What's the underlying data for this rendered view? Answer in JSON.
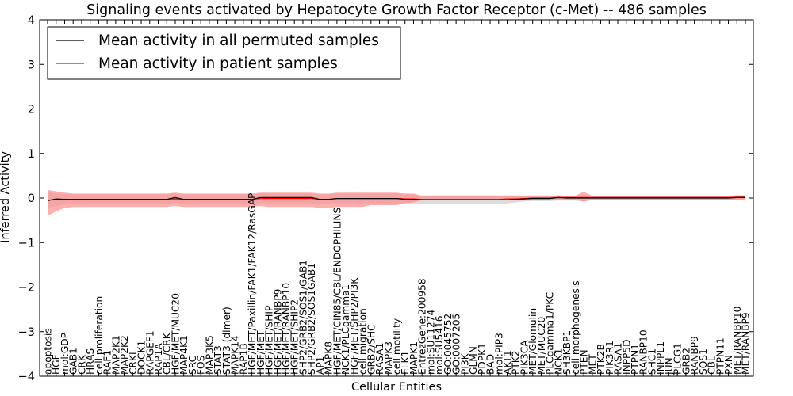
{
  "chart_data": {
    "type": "line",
    "title": "Signaling events activated by Hepatocyte Growth Factor Receptor (c-Met) -- 486 samples",
    "xlabel": "Cellular Entities",
    "ylabel": "Inferred Activity",
    "ylim": [
      -4,
      4
    ],
    "yticks": [
      -4,
      -3,
      -2,
      -1,
      0,
      1,
      2,
      3,
      4
    ],
    "ytick_labels": [
      "−4",
      "−3",
      "−2",
      "−1",
      "0",
      "1",
      "2",
      "3",
      "4"
    ],
    "grid": false,
    "legend": {
      "position": "top-left"
    },
    "categories": [
      "apoptosis",
      "HGF",
      "mol:GDP",
      "GAB1",
      "CRK",
      "HRAS",
      "cell proliferation",
      "RAF1",
      "MAP2K1",
      "MAP2K2",
      "CRKL",
      "DOCK1",
      "RAPGEF1",
      "RAP1A",
      "CBL/CRK",
      "HGF/MET/MUC20",
      "MAP4K1",
      "SRC",
      "FOS",
      "MAP3K5",
      "STAT3",
      "STAT3 (dimer)",
      "MAPK14",
      "RAP1B",
      "HGF/MET/Paxillin/FAK1/FAK12/RasGAP",
      "HGF/MET",
      "HGF/MET/SHIP",
      "HGF/MET/RANBP9",
      "HGF/MET/RANBP10",
      "HGF/MET/SHIP2",
      "SHP2/GRB2/SOS1/GAB1",
      "SHP2/GRB2/SOS1GAB1",
      "AP1",
      "MAPK8",
      "HGF/MET/CIN85/CBL/ENDOPHILINS",
      "NCK1/PLCgamma1",
      "HGF/MET/SHP2/PI3K",
      "cell migration",
      "GRB2/SHC",
      "RASA1",
      "MAPK3",
      "cell motility",
      "ELK1",
      "MAPK1",
      "EntrezGene:200958",
      "mol:SU11274",
      "mol:SU5416",
      "GO:0045752",
      "GO:0007205",
      "PI3K",
      "GLMN",
      "PDPK1",
      "BAD",
      "mol:PIP3",
      "AKT1",
      "PTK2",
      "PIK3CA",
      "MET/Glomulin",
      "MET/MUC20",
      "PLCgamma1/PKC",
      "NCK1",
      "SH3KBP1",
      "cell morphogenesis",
      "PTEN",
      "MET",
      "PTK2B",
      "PIK3R1",
      "RASA1",
      "INPP5D",
      "PTPN1",
      "RANBP10",
      "SHC1",
      "INPPL1",
      "JUN",
      "PLCG1",
      "GRB2",
      "RANBP9",
      "SOS1",
      "CBL",
      "PTPN11",
      "PXN",
      "MET/RANBP10",
      "MET/RANBP9"
    ],
    "series": [
      {
        "name": "Mean activity in patient samples",
        "color": "#ff0000",
        "band_color": "#ff8c8c",
        "values": [
          -0.05,
          -0.03,
          -0.03,
          -0.03,
          -0.03,
          -0.03,
          -0.03,
          -0.03,
          -0.03,
          -0.03,
          -0.03,
          -0.03,
          -0.03,
          -0.03,
          -0.03,
          -0.02,
          -0.03,
          -0.03,
          -0.03,
          -0.03,
          -0.03,
          -0.03,
          -0.03,
          -0.03,
          -0.03,
          -0.01,
          -0.01,
          -0.01,
          -0.01,
          -0.01,
          -0.01,
          -0.01,
          -0.03,
          -0.03,
          -0.01,
          -0.01,
          -0.01,
          -0.01,
          -0.01,
          -0.01,
          -0.01,
          -0.01,
          -0.02,
          -0.02,
          -0.03,
          -0.03,
          -0.03,
          -0.03,
          -0.03,
          -0.03,
          -0.03,
          -0.03,
          -0.03,
          -0.03,
          -0.02,
          -0.02,
          -0.01,
          0.0,
          0.0,
          0.0,
          0.01,
          0.01,
          0.01,
          0.01,
          0.01,
          0.01,
          0.01,
          0.01,
          0.01,
          0.01,
          0.01,
          0.01,
          0.01,
          0.01,
          0.01,
          0.01,
          0.01,
          0.01,
          0.01,
          0.01,
          0.01,
          0.02,
          0.02
        ],
        "band_upper": [
          0.18,
          0.15,
          0.12,
          0.1,
          0.1,
          0.1,
          0.1,
          0.1,
          0.1,
          0.1,
          0.1,
          0.1,
          0.1,
          0.1,
          0.1,
          0.12,
          0.1,
          0.1,
          0.1,
          0.1,
          0.1,
          0.1,
          0.1,
          0.1,
          0.1,
          0.12,
          0.12,
          0.12,
          0.12,
          0.12,
          0.12,
          0.12,
          0.1,
          0.1,
          0.12,
          0.12,
          0.12,
          0.12,
          0.12,
          0.12,
          0.12,
          0.12,
          0.1,
          0.1,
          0.05,
          0.05,
          0.05,
          0.05,
          0.05,
          0.05,
          0.05,
          0.05,
          0.05,
          0.05,
          0.05,
          0.05,
          0.05,
          0.05,
          0.05,
          0.05,
          0.06,
          0.05,
          0.05,
          0.14,
          0.05,
          0.05,
          0.05,
          0.05,
          0.05,
          0.05,
          0.05,
          0.05,
          0.05,
          0.05,
          0.05,
          0.05,
          0.05,
          0.05,
          0.05,
          0.05,
          0.05,
          0.06,
          0.06
        ],
        "band_lower": [
          -0.4,
          -0.3,
          -0.22,
          -0.2,
          -0.2,
          -0.2,
          -0.2,
          -0.2,
          -0.2,
          -0.2,
          -0.2,
          -0.2,
          -0.2,
          -0.2,
          -0.2,
          -0.18,
          -0.2,
          -0.2,
          -0.2,
          -0.2,
          -0.2,
          -0.2,
          -0.2,
          -0.2,
          -0.2,
          -0.18,
          -0.2,
          -0.2,
          -0.2,
          -0.2,
          -0.2,
          -0.2,
          -0.22,
          -0.22,
          -0.2,
          -0.2,
          -0.2,
          -0.2,
          -0.16,
          -0.16,
          -0.16,
          -0.16,
          -0.12,
          -0.1,
          -0.05,
          -0.05,
          -0.05,
          -0.05,
          -0.05,
          -0.05,
          -0.05,
          -0.05,
          -0.05,
          -0.05,
          -0.05,
          -0.05,
          -0.05,
          -0.05,
          -0.04,
          -0.04,
          -0.04,
          -0.04,
          -0.04,
          -0.08,
          -0.04,
          -0.04,
          -0.04,
          -0.04,
          -0.04,
          -0.04,
          -0.04,
          -0.04,
          -0.04,
          -0.04,
          -0.04,
          -0.04,
          -0.04,
          -0.04,
          -0.04,
          -0.04,
          -0.04,
          -0.04,
          -0.04
        ]
      },
      {
        "name": "Mean activity in all permuted samples",
        "color": "#000000",
        "band_color": "#d6d6d6",
        "values": [
          -0.06,
          -0.02,
          -0.03,
          -0.03,
          -0.03,
          -0.03,
          -0.03,
          -0.03,
          -0.03,
          -0.03,
          -0.03,
          -0.03,
          -0.03,
          -0.03,
          -0.03,
          0.01,
          -0.03,
          -0.03,
          -0.03,
          -0.03,
          -0.03,
          -0.03,
          -0.03,
          -0.03,
          -0.03,
          0.01,
          0.01,
          0.01,
          0.01,
          0.01,
          0.01,
          0.01,
          -0.03,
          -0.03,
          -0.01,
          -0.01,
          -0.01,
          -0.01,
          -0.01,
          -0.01,
          -0.01,
          -0.01,
          -0.03,
          -0.03,
          -0.04,
          -0.04,
          -0.04,
          -0.04,
          -0.04,
          -0.04,
          -0.04,
          -0.04,
          -0.04,
          -0.04,
          -0.04,
          -0.03,
          -0.02,
          -0.01,
          -0.01,
          -0.01,
          0.01,
          0.0,
          0.0,
          0.0,
          0.0,
          0.0,
          0.0,
          0.0,
          0.0,
          0.0,
          0.0,
          0.0,
          0.0,
          0.0,
          0.0,
          0.0,
          0.0,
          0.0,
          0.0,
          0.0,
          0.0,
          0.01,
          0.01
        ],
        "band_upper": [
          0.12,
          0.1,
          0.08,
          0.08,
          0.08,
          0.08,
          0.08,
          0.08,
          0.08,
          0.08,
          0.08,
          0.08,
          0.08,
          0.08,
          0.08,
          0.1,
          0.08,
          0.08,
          0.08,
          0.08,
          0.08,
          0.08,
          0.08,
          0.08,
          0.08,
          0.1,
          0.1,
          0.1,
          0.1,
          0.1,
          0.1,
          0.1,
          0.08,
          0.08,
          0.1,
          0.1,
          0.1,
          0.1,
          0.1,
          0.1,
          0.1,
          0.1,
          0.08,
          0.08,
          0.06,
          0.06,
          0.06,
          0.06,
          0.06,
          0.06,
          0.06,
          0.06,
          0.06,
          0.06,
          0.06,
          0.06,
          0.06,
          0.06,
          0.06,
          0.06,
          0.06,
          0.05,
          0.05,
          0.08,
          0.05,
          0.05,
          0.05,
          0.05,
          0.05,
          0.05,
          0.05,
          0.05,
          0.05,
          0.05,
          0.05,
          0.05,
          0.05,
          0.05,
          0.05,
          0.05,
          0.05,
          0.06,
          0.06
        ],
        "band_lower": [
          -0.22,
          -0.18,
          -0.15,
          -0.14,
          -0.14,
          -0.14,
          -0.14,
          -0.14,
          -0.14,
          -0.14,
          -0.14,
          -0.14,
          -0.14,
          -0.14,
          -0.14,
          -0.1,
          -0.14,
          -0.14,
          -0.14,
          -0.14,
          -0.14,
          -0.14,
          -0.14,
          -0.14,
          -0.14,
          -0.12,
          -0.12,
          -0.12,
          -0.12,
          -0.12,
          -0.12,
          -0.12,
          -0.14,
          -0.14,
          -0.14,
          -0.14,
          -0.14,
          -0.14,
          -0.14,
          -0.14,
          -0.14,
          -0.14,
          -0.12,
          -0.12,
          -0.14,
          -0.14,
          -0.14,
          -0.14,
          -0.14,
          -0.14,
          -0.14,
          -0.14,
          -0.14,
          -0.14,
          -0.12,
          -0.1,
          -0.08,
          -0.07,
          -0.07,
          -0.07,
          -0.06,
          -0.06,
          -0.06,
          -0.08,
          -0.05,
          -0.05,
          -0.05,
          -0.05,
          -0.05,
          -0.05,
          -0.05,
          -0.05,
          -0.05,
          -0.05,
          -0.05,
          -0.05,
          -0.05,
          -0.05,
          -0.05,
          -0.05,
          -0.05,
          -0.05,
          -0.05
        ]
      }
    ]
  }
}
